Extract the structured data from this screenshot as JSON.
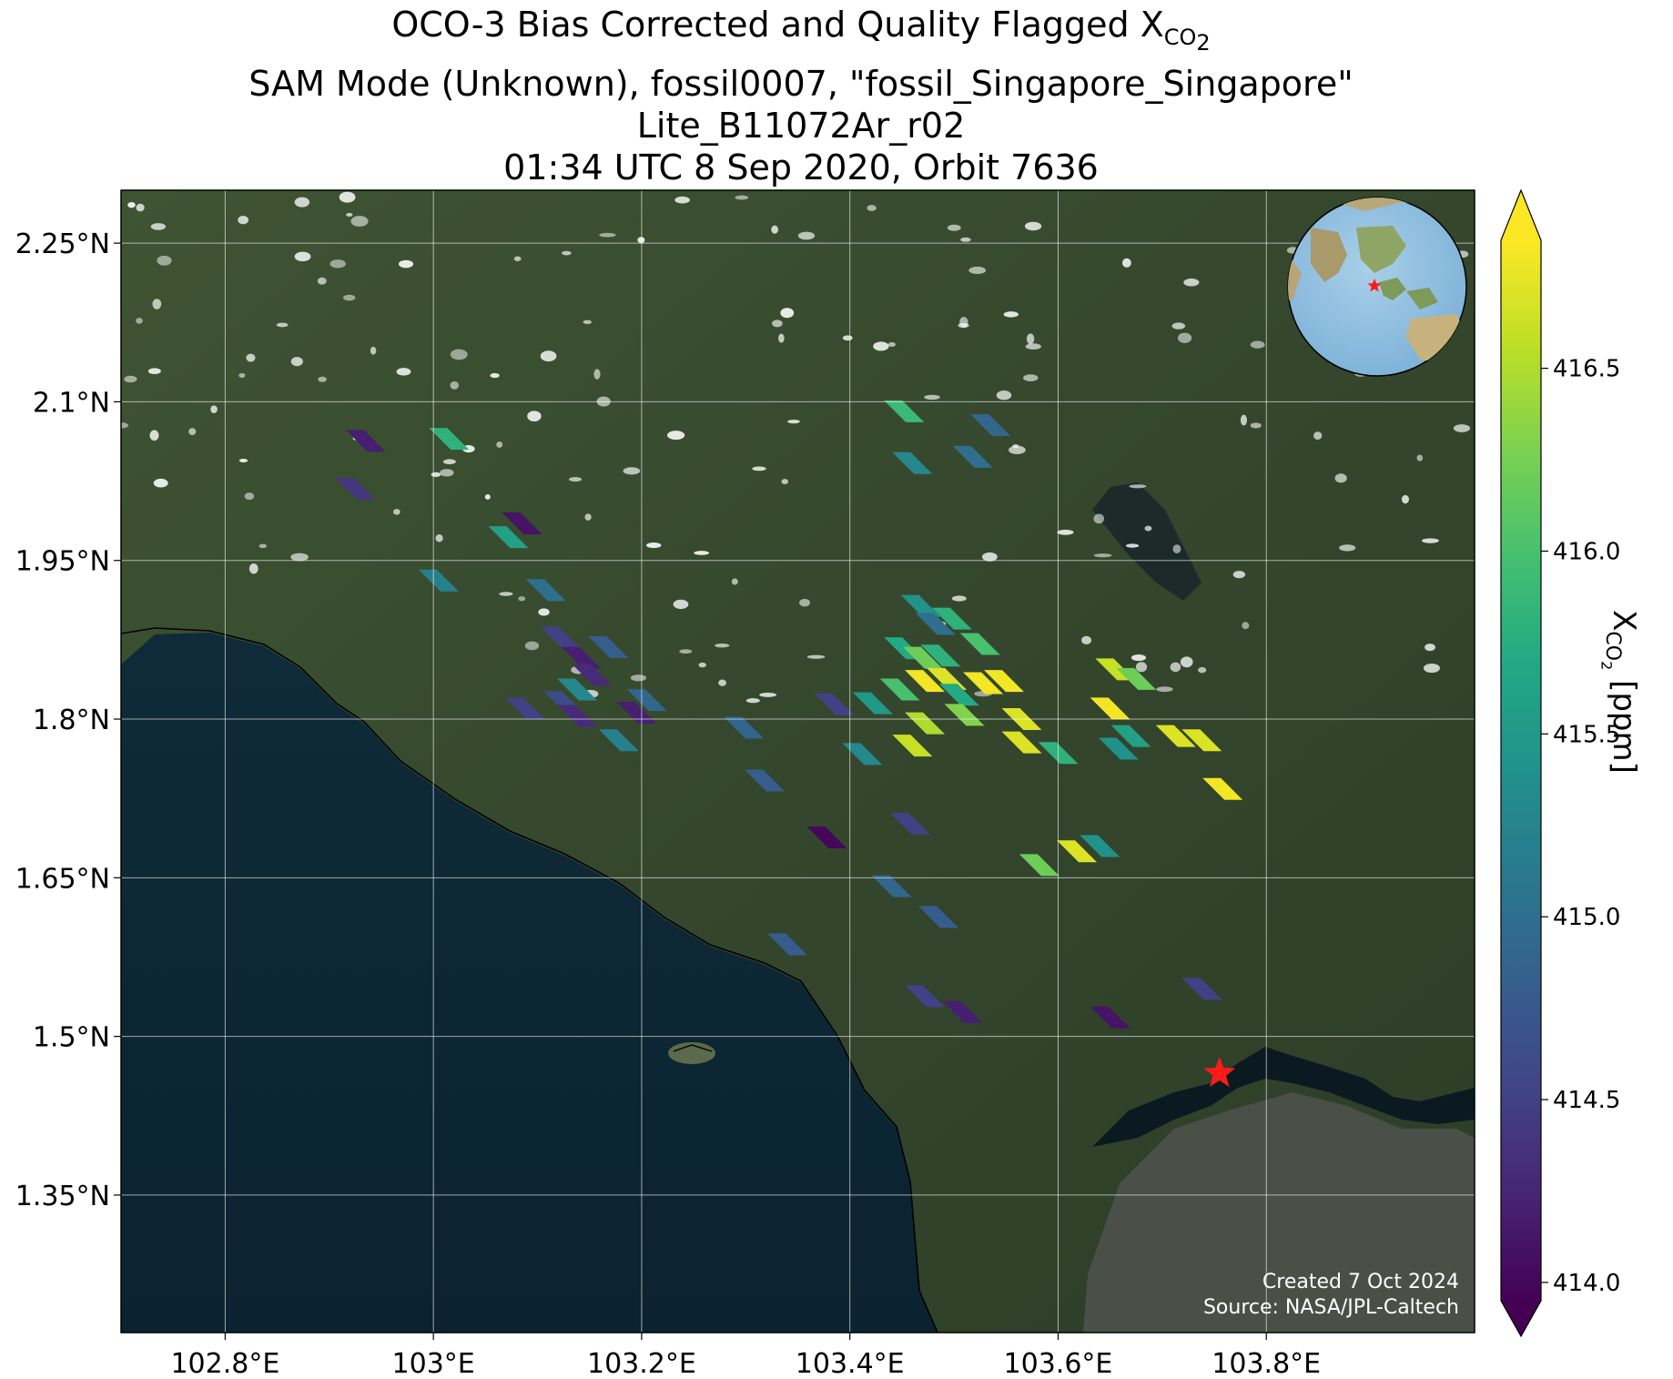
{
  "title": {
    "line1_main": "OCO-3 Bias Corrected and Quality Flagged X",
    "line1_sub": "CO",
    "line1_subsub": "2",
    "line2": "SAM Mode (Unknown), fossil0007, \"fossil_Singapore_Singapore\"",
    "line3": "Lite_B11072Ar_r02",
    "line4": "01:34 UTC 8 Sep 2020, Orbit 7636"
  },
  "credits": {
    "created": "Created 7 Oct 2024",
    "source": "Source: NASA/JPL-Caltech"
  },
  "colorbar": {
    "label_main": "X",
    "label_sub": "CO",
    "label_subsub": "2",
    "label_unit": " [ppm]",
    "ticks": [
      "414.0",
      "414.5",
      "415.0",
      "415.5",
      "416.0",
      "416.5"
    ],
    "range": [
      413.95,
      416.85
    ],
    "colormap": "viridis",
    "extend": "both"
  },
  "axes": {
    "x_ticks": [
      "102.8°E",
      "103°E",
      "103.2°E",
      "103.4°E",
      "103.6°E",
      "103.8°E"
    ],
    "y_ticks": [
      "2.25°N",
      "2.1°N",
      "1.95°N",
      "1.8°N",
      "1.65°N",
      "1.5°N",
      "1.35°N"
    ],
    "x_tick_values": [
      102.8,
      103.0,
      103.2,
      103.4,
      103.6,
      103.8
    ],
    "y_tick_values": [
      2.25,
      2.1,
      1.95,
      1.8,
      1.65,
      1.5,
      1.35
    ],
    "lon_range": [
      102.7,
      104.0
    ],
    "lat_range": [
      1.22,
      2.3
    ],
    "grid": true,
    "basemap": "satellite imagery",
    "inset": "globe centered on Southeast Asia with red star marking target"
  },
  "target": {
    "name": "fossil_Singapore_Singapore",
    "lon": 103.755,
    "lat": 1.465,
    "marker": "red star"
  },
  "chart_data": {
    "type": "scatter",
    "value_name": "XCO2 [ppm]",
    "points": [
      {
        "lon": 102.935,
        "lat": 2.063,
        "v": 414.2
      },
      {
        "lon": 102.925,
        "lat": 2.018,
        "v": 414.4
      },
      {
        "lon": 103.015,
        "lat": 2.065,
        "v": 415.8
      },
      {
        "lon": 103.005,
        "lat": 1.931,
        "v": 415.2
      },
      {
        "lon": 103.085,
        "lat": 1.985,
        "v": 414.1
      },
      {
        "lon": 103.072,
        "lat": 1.972,
        "v": 415.6
      },
      {
        "lon": 103.108,
        "lat": 1.922,
        "v": 415.0
      },
      {
        "lon": 103.122,
        "lat": 1.877,
        "v": 414.5
      },
      {
        "lon": 103.142,
        "lat": 1.858,
        "v": 414.2
      },
      {
        "lon": 103.168,
        "lat": 1.868,
        "v": 414.8
      },
      {
        "lon": 103.152,
        "lat": 1.842,
        "v": 414.3
      },
      {
        "lon": 103.138,
        "lat": 1.828,
        "v": 415.3
      },
      {
        "lon": 103.125,
        "lat": 1.816,
        "v": 414.6
      },
      {
        "lon": 103.088,
        "lat": 1.81,
        "v": 414.5
      },
      {
        "lon": 103.138,
        "lat": 1.803,
        "v": 414.3
      },
      {
        "lon": 103.205,
        "lat": 1.818,
        "v": 414.9
      },
      {
        "lon": 103.195,
        "lat": 1.806,
        "v": 414.2
      },
      {
        "lon": 103.178,
        "lat": 1.78,
        "v": 415.2
      },
      {
        "lon": 103.298,
        "lat": 1.792,
        "v": 414.9
      },
      {
        "lon": 103.318,
        "lat": 1.742,
        "v": 414.8
      },
      {
        "lon": 103.385,
        "lat": 1.814,
        "v": 414.5
      },
      {
        "lon": 103.422,
        "lat": 1.815,
        "v": 415.5
      },
      {
        "lon": 103.448,
        "lat": 1.828,
        "v": 416.0
      },
      {
        "lon": 103.412,
        "lat": 1.767,
        "v": 415.3
      },
      {
        "lon": 103.452,
        "lat": 2.091,
        "v": 415.9
      },
      {
        "lon": 103.46,
        "lat": 2.042,
        "v": 415.3
      },
      {
        "lon": 103.535,
        "lat": 2.078,
        "v": 414.9
      },
      {
        "lon": 103.518,
        "lat": 2.048,
        "v": 415.0
      },
      {
        "lon": 103.468,
        "lat": 1.907,
        "v": 415.4
      },
      {
        "lon": 103.482,
        "lat": 1.89,
        "v": 415.0
      },
      {
        "lon": 103.498,
        "lat": 1.895,
        "v": 415.8
      },
      {
        "lon": 103.452,
        "lat": 1.867,
        "v": 415.7
      },
      {
        "lon": 103.47,
        "lat": 1.858,
        "v": 416.2
      },
      {
        "lon": 103.487,
        "lat": 1.86,
        "v": 415.8
      },
      {
        "lon": 103.525,
        "lat": 1.871,
        "v": 416.0
      },
      {
        "lon": 103.472,
        "lat": 1.836,
        "v": 416.8
      },
      {
        "lon": 103.493,
        "lat": 1.838,
        "v": 416.7
      },
      {
        "lon": 103.505,
        "lat": 1.823,
        "v": 415.7
      },
      {
        "lon": 103.528,
        "lat": 1.834,
        "v": 416.8
      },
      {
        "lon": 103.548,
        "lat": 1.836,
        "v": 416.8
      },
      {
        "lon": 103.472,
        "lat": 1.796,
        "v": 416.5
      },
      {
        "lon": 103.51,
        "lat": 1.804,
        "v": 416.3
      },
      {
        "lon": 103.46,
        "lat": 1.775,
        "v": 416.6
      },
      {
        "lon": 103.565,
        "lat": 1.8,
        "v": 416.7
      },
      {
        "lon": 103.565,
        "lat": 1.778,
        "v": 416.7
      },
      {
        "lon": 103.6,
        "lat": 1.768,
        "v": 415.8
      },
      {
        "lon": 103.655,
        "lat": 1.847,
        "v": 416.6
      },
      {
        "lon": 103.675,
        "lat": 1.838,
        "v": 416.2
      },
      {
        "lon": 103.65,
        "lat": 1.81,
        "v": 416.8
      },
      {
        "lon": 103.67,
        "lat": 1.784,
        "v": 415.6
      },
      {
        "lon": 103.658,
        "lat": 1.772,
        "v": 415.4
      },
      {
        "lon": 103.713,
        "lat": 1.784,
        "v": 416.7
      },
      {
        "lon": 103.738,
        "lat": 1.78,
        "v": 416.7
      },
      {
        "lon": 103.758,
        "lat": 1.734,
        "v": 416.8
      },
      {
        "lon": 103.378,
        "lat": 1.688,
        "v": 414.0
      },
      {
        "lon": 103.458,
        "lat": 1.701,
        "v": 414.5
      },
      {
        "lon": 103.44,
        "lat": 1.642,
        "v": 414.9
      },
      {
        "lon": 103.485,
        "lat": 1.613,
        "v": 414.8
      },
      {
        "lon": 103.34,
        "lat": 1.587,
        "v": 414.8
      },
      {
        "lon": 103.582,
        "lat": 1.662,
        "v": 416.2
      },
      {
        "lon": 103.618,
        "lat": 1.675,
        "v": 416.7
      },
      {
        "lon": 103.64,
        "lat": 1.68,
        "v": 415.4
      },
      {
        "lon": 103.472,
        "lat": 1.538,
        "v": 414.5
      },
      {
        "lon": 103.508,
        "lat": 1.523,
        "v": 414.2
      },
      {
        "lon": 103.65,
        "lat": 1.518,
        "v": 414.1
      },
      {
        "lon": 103.738,
        "lat": 1.545,
        "v": 414.5
      }
    ]
  }
}
